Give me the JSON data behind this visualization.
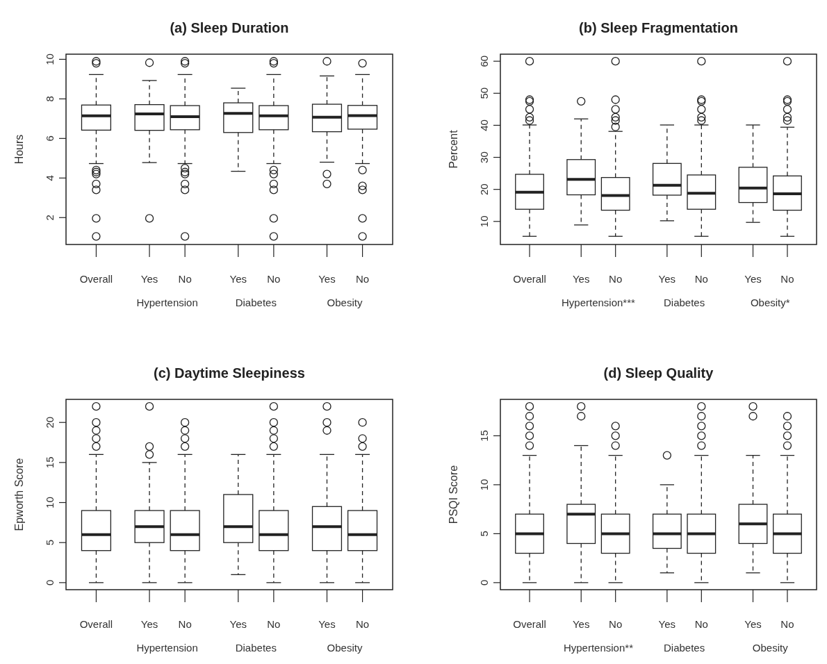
{
  "chart_data": [
    {
      "type": "box",
      "title": "(a) Sleep Duration",
      "ylabel": "Hours",
      "categories": [
        "Overall",
        "Yes",
        "No",
        "Yes",
        "No",
        "Yes",
        "No"
      ],
      "annotations": [
        "Hypertension",
        "Diabetes",
        "Obesity"
      ],
      "ylim": [
        0.64,
        10.26
      ],
      "yticks": [
        2,
        4,
        6,
        8,
        10
      ],
      "boxes": [
        {
          "low": 4.73,
          "q1": 6.42,
          "median": 7.14,
          "q3": 7.69,
          "high": 9.23,
          "outliers": [
            9.9,
            9.8,
            4.4,
            4.3,
            4.2,
            3.7,
            3.4,
            1.96,
            1.05
          ]
        },
        {
          "low": 4.78,
          "q1": 6.41,
          "median": 7.24,
          "q3": 7.71,
          "high": 8.93,
          "outliers": [
            9.83,
            1.96
          ]
        },
        {
          "low": 4.73,
          "q1": 6.44,
          "median": 7.1,
          "q3": 7.66,
          "high": 9.23,
          "outliers": [
            9.9,
            9.8,
            4.5,
            4.3,
            4.2,
            3.7,
            3.4,
            1.05
          ]
        },
        {
          "low": 4.34,
          "q1": 6.3,
          "median": 7.27,
          "q3": 7.8,
          "high": 8.54
        },
        {
          "low": 4.73,
          "q1": 6.44,
          "median": 7.14,
          "q3": 7.66,
          "high": 9.23,
          "outliers": [
            9.9,
            9.8,
            4.4,
            4.2,
            3.7,
            3.4,
            1.96,
            1.05
          ]
        },
        {
          "low": 4.8,
          "q1": 6.34,
          "median": 7.07,
          "q3": 7.73,
          "high": 9.16,
          "outliers": [
            9.9,
            4.2,
            3.7
          ]
        },
        {
          "low": 4.73,
          "q1": 6.47,
          "median": 7.15,
          "q3": 7.67,
          "high": 9.23,
          "outliers": [
            9.8,
            4.4,
            3.6,
            3.4,
            1.96,
            1.05
          ]
        }
      ]
    },
    {
      "type": "box",
      "title": "(b) Sleep Fragmentation",
      "ylabel": "Percent",
      "categories": [
        "Overall",
        "Yes",
        "No",
        "Yes",
        "No",
        "Yes",
        "No"
      ],
      "annotations": [
        "Hypertension***",
        "Diabetes",
        "Obesity*"
      ],
      "ylim": [
        2.8,
        62.2
      ],
      "yticks": [
        10,
        20,
        30,
        40,
        50,
        60
      ],
      "boxes": [
        {
          "low": 5.35,
          "q1": 13.8,
          "median": 19.1,
          "q3": 24.7,
          "high": 40.1,
          "outliers": [
            60,
            48,
            47.5,
            45,
            42.5,
            41.5
          ]
        },
        {
          "low": 8.9,
          "q1": 18.3,
          "median": 23.1,
          "q3": 29.3,
          "high": 42,
          "outliers": [
            47.5
          ]
        },
        {
          "low": 5.35,
          "q1": 13.5,
          "median": 18.1,
          "q3": 23.7,
          "high": 38.1,
          "outliers": [
            60,
            48,
            45,
            42.5,
            41.5,
            39.5
          ]
        },
        {
          "low": 10.2,
          "q1": 18.2,
          "median": 21.3,
          "q3": 28.1,
          "high": 40.1
        },
        {
          "low": 5.35,
          "q1": 13.8,
          "median": 18.8,
          "q3": 24.5,
          "high": 40.1,
          "outliers": [
            60,
            48,
            47.5,
            45,
            42.5,
            41.5
          ]
        },
        {
          "low": 9.7,
          "q1": 15.9,
          "median": 20.4,
          "q3": 26.9,
          "high": 40.1
        },
        {
          "low": 5.35,
          "q1": 13.5,
          "median": 18.6,
          "q3": 24.2,
          "high": 39.4,
          "outliers": [
            60,
            48,
            47.5,
            45,
            42.5,
            41.5
          ]
        }
      ]
    },
    {
      "type": "box",
      "title": "(c) Daytime Sleepiness",
      "ylabel": "Epworth Score",
      "categories": [
        "Overall",
        "Yes",
        "No",
        "Yes",
        "No",
        "Yes",
        "No"
      ],
      "annotations": [
        "Hypertension",
        "Diabetes",
        "Obesity"
      ],
      "ylim": [
        -0.88,
        22.88
      ],
      "yticks": [
        0,
        5,
        10,
        15,
        20
      ],
      "boxes": [
        {
          "low": 0,
          "q1": 4,
          "median": 6,
          "q3": 9,
          "high": 16,
          "outliers": [
            17,
            18,
            19,
            20,
            22
          ]
        },
        {
          "low": 0,
          "q1": 5,
          "median": 7,
          "q3": 9,
          "high": 15,
          "outliers": [
            16,
            17,
            22
          ]
        },
        {
          "low": 0,
          "q1": 4,
          "median": 6,
          "q3": 9,
          "high": 16,
          "outliers": [
            17,
            18,
            19,
            20
          ]
        },
        {
          "low": 1,
          "q1": 5,
          "median": 7,
          "q3": 11,
          "high": 16
        },
        {
          "low": 0,
          "q1": 4,
          "median": 6,
          "q3": 9,
          "high": 16,
          "outliers": [
            17,
            18,
            19,
            20,
            22
          ]
        },
        {
          "low": 0,
          "q1": 4,
          "median": 7,
          "q3": 9.5,
          "high": 16,
          "outliers": [
            19,
            20,
            22
          ]
        },
        {
          "low": 0,
          "q1": 4,
          "median": 6,
          "q3": 9,
          "high": 16,
          "outliers": [
            17,
            18,
            20
          ]
        }
      ]
    },
    {
      "type": "box",
      "title": "(d) Sleep Quality",
      "ylabel": "PSQI Score",
      "categories": [
        "Overall",
        "Yes",
        "No",
        "Yes",
        "No",
        "Yes",
        "No"
      ],
      "annotations": [
        "Hypertension**",
        "Diabetes",
        "Obesity"
      ],
      "ylim": [
        -0.72,
        18.72
      ],
      "yticks": [
        0,
        5,
        10,
        15
      ],
      "boxes": [
        {
          "low": 0,
          "q1": 3,
          "median": 5,
          "q3": 7,
          "high": 13,
          "outliers": [
            14,
            15,
            16,
            17,
            18
          ]
        },
        {
          "low": 0,
          "q1": 4,
          "median": 7,
          "q3": 8,
          "high": 14,
          "outliers": [
            17,
            18
          ]
        },
        {
          "low": 0,
          "q1": 3,
          "median": 5,
          "q3": 7,
          "high": 13,
          "outliers": [
            14,
            15,
            16
          ]
        },
        {
          "low": 1,
          "q1": 3.5,
          "median": 5,
          "q3": 7,
          "high": 10,
          "outliers": [
            13
          ]
        },
        {
          "low": 0,
          "q1": 3,
          "median": 5,
          "q3": 7,
          "high": 13,
          "outliers": [
            14,
            15,
            16,
            17,
            18
          ]
        },
        {
          "low": 1,
          "q1": 4,
          "median": 6,
          "q3": 8,
          "high": 13,
          "outliers": [
            17,
            18
          ]
        },
        {
          "low": 0,
          "q1": 3,
          "median": 5,
          "q3": 7,
          "high": 13,
          "outliers": [
            14,
            15,
            16,
            17
          ]
        }
      ]
    }
  ]
}
